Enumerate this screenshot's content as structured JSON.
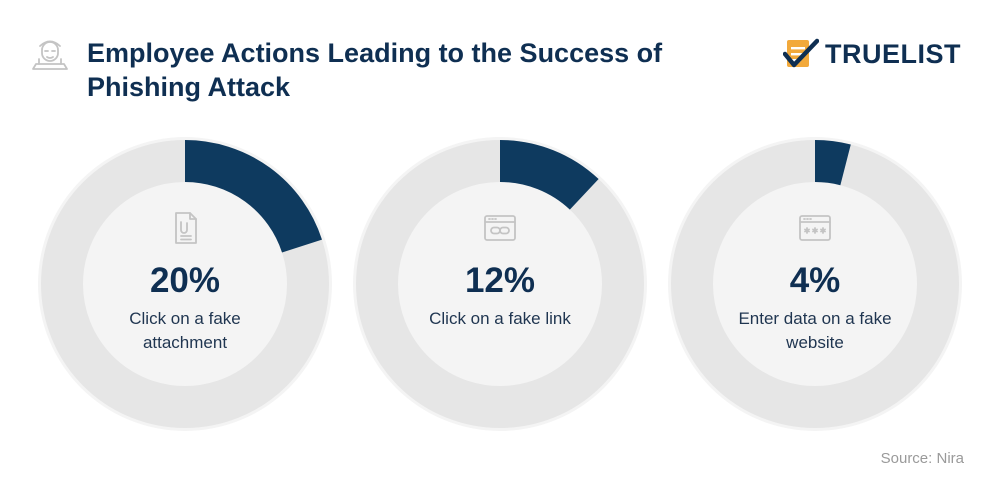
{
  "header": {
    "title": "Employee Actions Leading to the Success of Phishing Attack",
    "icon": "hacker-laptop-icon"
  },
  "brand": {
    "name": "TRUELIST",
    "icon": "checklist-logo-icon",
    "colors": {
      "navy": "#0f2f52",
      "orange": "#f2a93b"
    }
  },
  "chart_data": {
    "type": "pie",
    "style": "donut",
    "unit": "%",
    "items": [
      {
        "value": 20,
        "value_label": "20%",
        "label": "Click on a fake attachment",
        "icon": "document-icon"
      },
      {
        "value": 12,
        "value_label": "12%",
        "label": "Click on a fake link",
        "icon": "browser-link-icon"
      },
      {
        "value": 4,
        "value_label": "4%",
        "label": "Enter data on a fake website",
        "icon": "browser-password-icon"
      }
    ],
    "colors": {
      "filled": "#0e3a5f",
      "track": "#e6e6e6",
      "outer_halo": "#f4f4f4"
    }
  },
  "footer": {
    "source": "Source: Nira"
  }
}
